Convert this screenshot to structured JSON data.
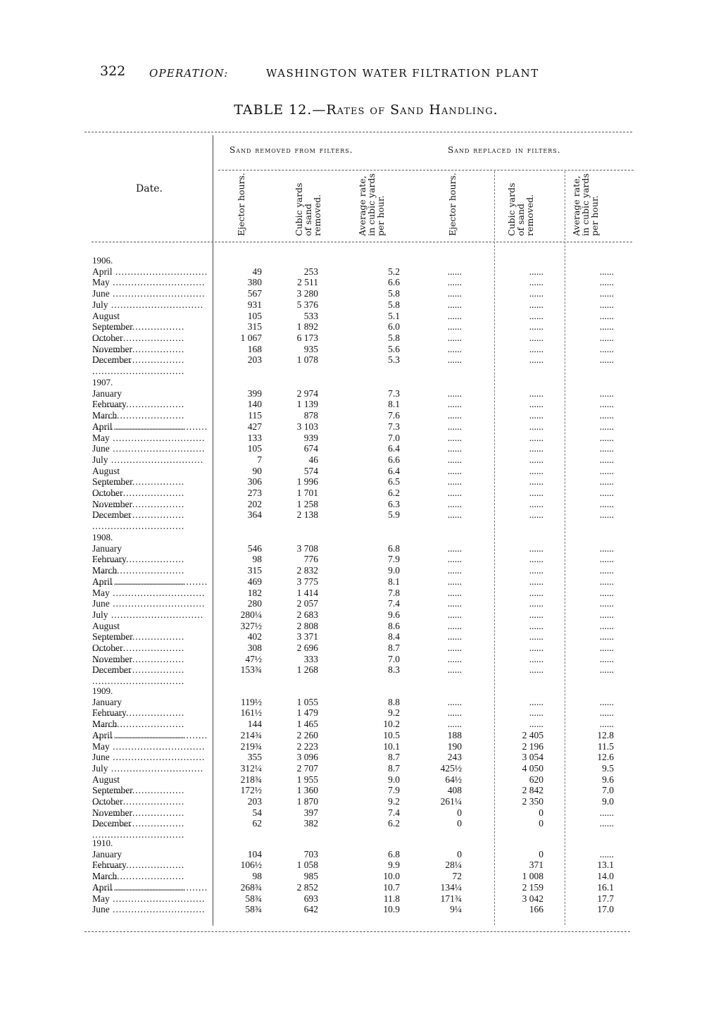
{
  "header": {
    "page_number": "322",
    "running_head_left": "OPERATION:",
    "running_head_right": "WASHINGTON WATER FILTRATION PLANT"
  },
  "table": {
    "title": "TABLE 12.—Rates of Sand Handling.",
    "date_header": "Date.",
    "group_headers": [
      "Sand removed from filters.",
      "Sand replaced in filters."
    ],
    "column_headers": [
      "Ejector hours.",
      "Cubic yards of sand removed.",
      "Average rate, in cubic yards per hour.",
      "Ejector hours.",
      "Cubic yards of sand removed.",
      "Average rate, in cubic yards per hour."
    ],
    "years": [
      {
        "year": "1906.",
        "rows": [
          [
            "April",
            "49",
            "253",
            "5.2",
            "......",
            "......",
            "......"
          ],
          [
            "May",
            "380",
            "2 511",
            "6.6",
            "......",
            "......",
            "......"
          ],
          [
            "June",
            "567",
            "3 280",
            "5.8",
            "......",
            "......",
            "......"
          ],
          [
            "July",
            "931",
            "5 376",
            "5.8",
            "......",
            "......",
            "......"
          ],
          [
            "August",
            "105",
            "533",
            "5.1",
            "......",
            "......",
            "......"
          ],
          [
            "September",
            "315",
            "1 892",
            "6.0",
            "......",
            "......",
            "......"
          ],
          [
            "October",
            "1 067",
            "6 173",
            "5.8",
            "......",
            "......",
            "......"
          ],
          [
            "November",
            "168",
            "935",
            "5.6",
            "......",
            "......",
            "......"
          ],
          [
            "December",
            "203",
            "1 078",
            "5.3",
            "......",
            "......",
            "......"
          ]
        ]
      },
      {
        "year": "1907.",
        "rows": [
          [
            "January",
            "399",
            "2 974",
            "7.3",
            "......",
            "......",
            "......"
          ],
          [
            "February",
            "140",
            "1 139",
            "8.1",
            "......",
            "......",
            "......"
          ],
          [
            "March",
            "115",
            "878",
            "7.6",
            "......",
            "......",
            "......"
          ],
          [
            "April",
            "427",
            "3 103",
            "7.3",
            "......",
            "......",
            "......"
          ],
          [
            "May",
            "133",
            "939",
            "7.0",
            "......",
            "......",
            "......"
          ],
          [
            "June",
            "105",
            "674",
            "6.4",
            "......",
            "......",
            "......"
          ],
          [
            "July",
            "7",
            "46",
            "6.6",
            "......",
            "......",
            "......"
          ],
          [
            "August",
            "90",
            "574",
            "6.4",
            "......",
            "......",
            "......"
          ],
          [
            "September",
            "306",
            "1 996",
            "6.5",
            "......",
            "......",
            "......"
          ],
          [
            "October",
            "273",
            "1 701",
            "6.2",
            "......",
            "......",
            "......"
          ],
          [
            "November",
            "202",
            "1 258",
            "6.3",
            "......",
            "......",
            "......"
          ],
          [
            "December",
            "364",
            "2 138",
            "5.9",
            "......",
            "......",
            "......"
          ]
        ]
      },
      {
        "year": "1908.",
        "rows": [
          [
            "January",
            "546",
            "3 708",
            "6.8",
            "......",
            "......",
            "......"
          ],
          [
            "February",
            "98",
            "776",
            "7.9",
            "......",
            "......",
            "......"
          ],
          [
            "March",
            "315",
            "2 832",
            "9.0",
            "......",
            "......",
            "......"
          ],
          [
            "April",
            "469",
            "3 775",
            "8.1",
            "......",
            "......",
            "......"
          ],
          [
            "May",
            "182",
            "1 414",
            "7.8",
            "......",
            "......",
            "......"
          ],
          [
            "June",
            "280",
            "2 057",
            "7.4",
            "......",
            "......",
            "......"
          ],
          [
            "July",
            "280¼",
            "2 683",
            "9.6",
            "......",
            "......",
            "......"
          ],
          [
            "August",
            "327½",
            "2 808",
            "8.6",
            "......",
            "......",
            "......"
          ],
          [
            "September",
            "402",
            "3 371",
            "8.4",
            "......",
            "......",
            "......"
          ],
          [
            "October",
            "308",
            "2 696",
            "8.7",
            "......",
            "......",
            "......"
          ],
          [
            "November",
            "47½",
            "333",
            "7.0",
            "......",
            "......",
            "......"
          ],
          [
            "December",
            "153¾",
            "1 268",
            "8.3",
            "......",
            "......",
            "......"
          ]
        ]
      },
      {
        "year": "1909.",
        "rows": [
          [
            "January",
            "119½",
            "1 055",
            "8.8",
            "......",
            "......",
            "......"
          ],
          [
            "February",
            "161½",
            "1 479",
            "9.2",
            "......",
            "......",
            "......"
          ],
          [
            "March",
            "144",
            "1 465",
            "10.2",
            "......",
            "......",
            "......"
          ],
          [
            "April",
            "214¾",
            "2 260",
            "10.5",
            "188",
            "2 405",
            "12.8"
          ],
          [
            "May",
            "219¾",
            "2 223",
            "10.1",
            "190",
            "2 196",
            "11.5"
          ],
          [
            "June",
            "355",
            "3 096",
            "8.7",
            "243",
            "3 054",
            "12.6"
          ],
          [
            "July",
            "312¼",
            "2 707",
            "8.7",
            "425½",
            "4 050",
            "9.5"
          ],
          [
            "August",
            "218¾",
            "1 955",
            "9.0",
            "64½",
            "620",
            "9.6"
          ],
          [
            "September",
            "172½",
            "1 360",
            "7.9",
            "408",
            "2 842",
            "7.0"
          ],
          [
            "October",
            "203",
            "1 870",
            "9.2",
            "261¼",
            "2 350",
            "9.0"
          ],
          [
            "November",
            "54",
            "397",
            "7.4",
            "0",
            "0",
            "......"
          ],
          [
            "December",
            "62",
            "382",
            "6.2",
            "0",
            "0",
            "......"
          ]
        ]
      },
      {
        "year": "1910.",
        "rows": [
          [
            "January",
            "104",
            "703",
            "6.8",
            "0",
            "0",
            "......"
          ],
          [
            "February",
            "106½",
            "1 058",
            "9.9",
            "28¼",
            "371",
            "13.1"
          ],
          [
            "March",
            "98",
            "985",
            "10.0",
            "72",
            "1 008",
            "14.0"
          ],
          [
            "April",
            "268¾",
            "2 852",
            "10.7",
            "134¼",
            "2 159",
            "16.1"
          ],
          [
            "May",
            "58¾",
            "693",
            "11.8",
            "171¾",
            "3 042",
            "17.7"
          ],
          [
            "June",
            "58¾",
            "642",
            "10.9",
            "9¼",
            "166",
            "17.0"
          ]
        ]
      }
    ]
  }
}
